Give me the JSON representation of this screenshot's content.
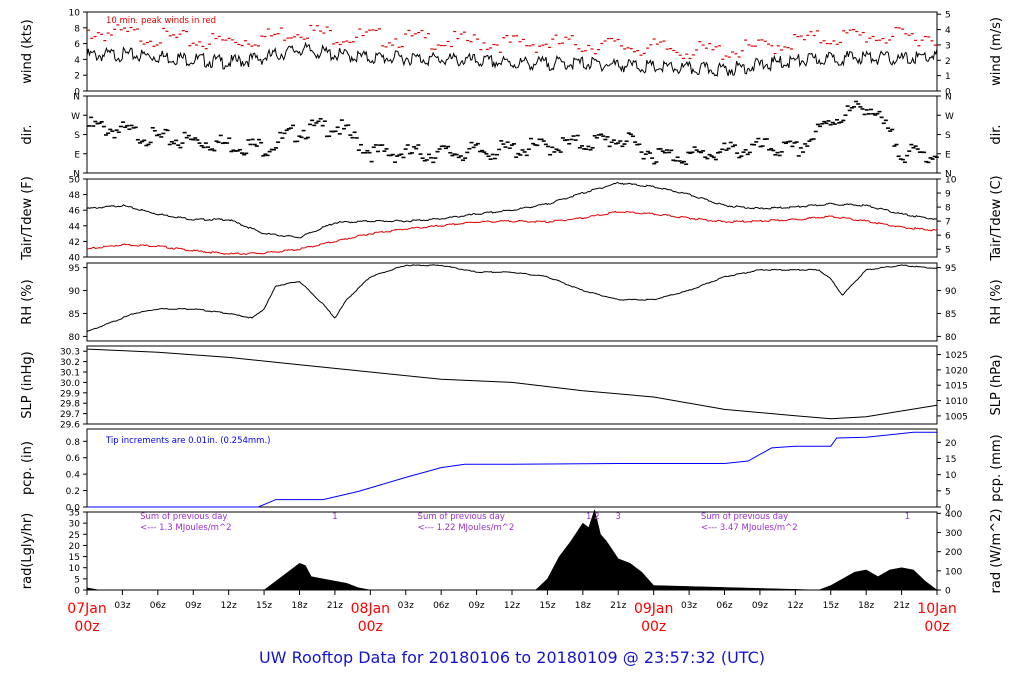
{
  "footer_title": "UW Rooftop Data for 20180106  to  20180109 @ 23:57:32  (UTC)",
  "colors": {
    "black": "#000000",
    "red": "#e00000",
    "blue": "#0000ff",
    "purple": "#9b30d0",
    "major_time": "#ff0000",
    "footer": "#1414d0"
  },
  "chart_data": [
    {
      "type": "line",
      "ylabel_left": "wind (kts)",
      "ylabel_right": "wind (m/s)",
      "ylim": [
        0,
        10
      ],
      "yticks_left": [
        0,
        2,
        4,
        6,
        8,
        10
      ],
      "ylim_right": [
        0,
        5.14
      ],
      "yticks_right": [
        0,
        1,
        2,
        3,
        4,
        5
      ],
      "annotation": "10 min. peak winds in red",
      "series": [
        {
          "color": "#000000",
          "x": [
            0,
            3,
            6,
            9,
            12,
            15,
            18,
            21,
            24,
            27,
            30,
            33,
            36,
            39,
            42,
            45,
            48,
            51,
            54,
            57,
            60,
            63,
            66,
            69,
            72
          ],
          "y": [
            4.5,
            4.6,
            4.4,
            4.0,
            3.6,
            4.2,
            5.3,
            4.6,
            4.2,
            4.2,
            4.0,
            3.8,
            3.5,
            3.5,
            3.5,
            3.3,
            3.0,
            2.8,
            2.7,
            3.3,
            3.8,
            4.1,
            4.3,
            4.0,
            4.5
          ]
        },
        {
          "color": "#e00000",
          "x": [
            0,
            3,
            6,
            9,
            12,
            15,
            18,
            21,
            24,
            27,
            30,
            33,
            36,
            39,
            42,
            45,
            48,
            51,
            54,
            57,
            60,
            63,
            66,
            69,
            72
          ],
          "y": [
            7.5,
            7.2,
            6.8,
            6.3,
            6.3,
            6.8,
            7.8,
            7.0,
            6.8,
            6.6,
            6.4,
            6.2,
            6.0,
            6.0,
            5.9,
            5.7,
            5.4,
            5.1,
            5.0,
            5.5,
            6.3,
            6.8,
            7.0,
            6.8,
            7.0
          ]
        }
      ]
    },
    {
      "type": "scatter",
      "ylabel_left": "dir.",
      "ylabel_right": "dir.",
      "ylim": [
        0,
        360
      ],
      "yticks_left": [
        "N",
        "E",
        "S",
        "W",
        "N"
      ],
      "yticks_right": [
        "N",
        "E",
        "S",
        "W",
        "N"
      ],
      "series": [
        {
          "color": "#000000",
          "x": [
            0,
            3,
            6,
            9,
            12,
            15,
            18,
            21,
            24,
            27,
            30,
            33,
            36,
            39,
            42,
            45,
            48,
            51,
            54,
            57,
            60,
            63,
            66,
            69,
            72
          ],
          "y": [
            220,
            195,
            160,
            150,
            135,
            120,
            200,
            220,
            95,
            90,
            92,
            100,
            110,
            125,
            140,
            160,
            85,
            80,
            100,
            120,
            105,
            250,
            320,
            90,
            85
          ]
        }
      ]
    },
    {
      "type": "line",
      "ylabel_left": "Tair/Tdew (F)",
      "ylabel_right": "Tair/Tdew (C)",
      "ylim": [
        40,
        50
      ],
      "yticks_left": [
        40,
        42,
        44,
        46,
        48,
        50
      ],
      "yticks_right": [
        5,
        6,
        7,
        8,
        9,
        10
      ],
      "series": [
        {
          "name": "Tair",
          "color": "#000000",
          "x": [
            0,
            3,
            6,
            9,
            12,
            15,
            18,
            21,
            24,
            27,
            30,
            33,
            36,
            39,
            42,
            45,
            48,
            51,
            54,
            57,
            60,
            63,
            66,
            69,
            72
          ],
          "y": [
            46.2,
            46.6,
            45.5,
            44.8,
            44.8,
            43.0,
            42.5,
            44.4,
            44.6,
            44.6,
            44.9,
            45.5,
            46.0,
            46.8,
            48.2,
            49.5,
            49.0,
            48.0,
            46.6,
            46.2,
            46.4,
            46.8,
            46.6,
            45.5,
            44.8
          ]
        },
        {
          "name": "Tdew",
          "color": "#e00000",
          "x": [
            0,
            3,
            6,
            9,
            12,
            15,
            18,
            21,
            24,
            27,
            30,
            33,
            36,
            39,
            42,
            45,
            48,
            51,
            54,
            57,
            60,
            63,
            66,
            69,
            72
          ],
          "y": [
            41.0,
            41.6,
            41.4,
            40.8,
            40.4,
            40.5,
            41.0,
            42.0,
            43.0,
            43.6,
            44.0,
            44.5,
            44.6,
            44.5,
            45.0,
            45.8,
            45.5,
            45.0,
            44.5,
            44.6,
            44.8,
            45.2,
            44.6,
            43.8,
            43.4
          ]
        }
      ]
    },
    {
      "type": "line",
      "ylabel_left": "RH (%)",
      "ylabel_right": "RH (%)",
      "ylim": [
        79,
        96
      ],
      "yticks_left": [
        80,
        85,
        90,
        95
      ],
      "yticks_right": [
        80,
        85,
        90,
        95
      ],
      "series": [
        {
          "color": "#000000",
          "x": [
            0,
            2,
            4,
            6,
            9,
            12,
            14,
            15,
            16,
            18,
            20,
            21,
            22,
            24,
            27,
            30,
            33,
            36,
            39,
            42,
            45,
            48,
            51,
            54,
            57,
            60,
            62,
            63,
            64,
            66,
            69,
            72
          ],
          "y": [
            81,
            83,
            85,
            86,
            86,
            85,
            84,
            86,
            91,
            92,
            87,
            84,
            88,
            93,
            95.5,
            95.5,
            94,
            94,
            93,
            90,
            88,
            88,
            90,
            93,
            94.5,
            94.5,
            94.5,
            92.5,
            89,
            94.5,
            95.5,
            94.8
          ]
        }
      ]
    },
    {
      "type": "line",
      "ylabel_left": "SLP (inHg)",
      "ylabel_right": "SLP (hPa)",
      "ylim": [
        29.6,
        30.35
      ],
      "yticks_left": [
        29.6,
        29.7,
        29.8,
        29.9,
        30.0,
        30.1,
        30.2,
        30.3
      ],
      "yticks_right": [
        1005,
        1010,
        1015,
        1020,
        1025
      ],
      "series": [
        {
          "color": "#000000",
          "x": [
            0,
            6,
            12,
            18,
            24,
            30,
            36,
            42,
            48,
            54,
            60,
            63,
            66,
            72
          ],
          "y": [
            30.32,
            30.29,
            30.24,
            30.17,
            30.1,
            30.03,
            30.0,
            29.92,
            29.86,
            29.74,
            29.68,
            29.65,
            29.67,
            29.78
          ]
        }
      ]
    },
    {
      "type": "line",
      "ylabel_left": "pcp. (in)",
      "ylabel_right": "pcp. (mm)",
      "ylim": [
        0,
        0.95
      ],
      "yticks_left": [
        0.0,
        0.2,
        0.4,
        0.6,
        0.8
      ],
      "yticks_right": [
        0,
        5,
        10,
        15,
        20
      ],
      "annotation": "Tip increments are 0.01in. (0.254mm.)",
      "series": [
        {
          "color": "#0000ff",
          "x": [
            0,
            14.5,
            16,
            20,
            23,
            27,
            30,
            32,
            36,
            45,
            54,
            56,
            58,
            60,
            63,
            63.5,
            66,
            70,
            72
          ],
          "y": [
            0,
            0,
            0.09,
            0.09,
            0.19,
            0.36,
            0.48,
            0.52,
            0.52,
            0.53,
            0.53,
            0.56,
            0.72,
            0.74,
            0.74,
            0.84,
            0.85,
            0.91,
            0.91
          ]
        }
      ]
    },
    {
      "type": "area",
      "ylabel_left": "rad(Lgly/hr)",
      "ylabel_right": "rad (W/m^2)",
      "ylim": [
        0,
        35
      ],
      "yticks_left": [
        0,
        5,
        10,
        15,
        20,
        25,
        30,
        35
      ],
      "yticks_right": [
        0,
        100,
        200,
        300,
        400
      ],
      "annotations": [
        {
          "text": "Sum of previous day",
          "h": 4.5
        },
        {
          "text": "<--- 1.3 MJoules/m^2",
          "h": 4.5
        },
        {
          "text": "Sum of previous day",
          "h": 28
        },
        {
          "text": "<--- 1.22 MJoules/m^2",
          "h": 28
        },
        {
          "text": "Sum of previous day",
          "h": 52
        },
        {
          "text": "<--- 3.47 MJoules/m^2",
          "h": 52
        }
      ],
      "markers": [
        {
          "label": "1",
          "h": 21
        },
        {
          "label": "1",
          "h": 42.5
        },
        {
          "label": "2",
          "h": 43.2
        },
        {
          "label": "3",
          "h": 45
        },
        {
          "label": "1",
          "h": 69.5
        }
      ],
      "series": [
        {
          "color": "#000000",
          "x": [
            0,
            1,
            15,
            16,
            17,
            18,
            18.5,
            19,
            20,
            21,
            22,
            23,
            24,
            38,
            39,
            40,
            41,
            42,
            42.5,
            43,
            43.5,
            44,
            45,
            46,
            47,
            48,
            62,
            63,
            64,
            65,
            66,
            67,
            68,
            69,
            70,
            71,
            72
          ],
          "y": [
            1,
            0,
            0,
            4,
            8,
            12,
            11,
            6,
            5,
            4,
            3,
            1,
            0,
            0,
            5,
            15,
            22,
            30,
            28,
            36,
            25,
            22,
            14,
            12,
            8,
            2,
            0,
            2,
            5,
            8,
            9,
            6,
            9,
            10,
            9,
            4,
            0
          ]
        }
      ]
    }
  ],
  "time_axis": {
    "range_hours": [
      0,
      72
    ],
    "minor_labels": [
      "03z",
      "06z",
      "09z",
      "12z",
      "15z",
      "18z",
      "21z",
      "03z",
      "06z",
      "09z",
      "12z",
      "15z",
      "18z",
      "21z",
      "03z",
      "06z",
      "09z",
      "12z",
      "15z",
      "18z",
      "21z"
    ],
    "major_labels": [
      {
        "date": "07Jan",
        "time": "00z",
        "h": 0
      },
      {
        "date": "08Jan",
        "time": "00z",
        "h": 24
      },
      {
        "date": "09Jan",
        "time": "00z",
        "h": 48
      },
      {
        "date": "10Jan",
        "time": "00z",
        "h": 72
      }
    ]
  }
}
